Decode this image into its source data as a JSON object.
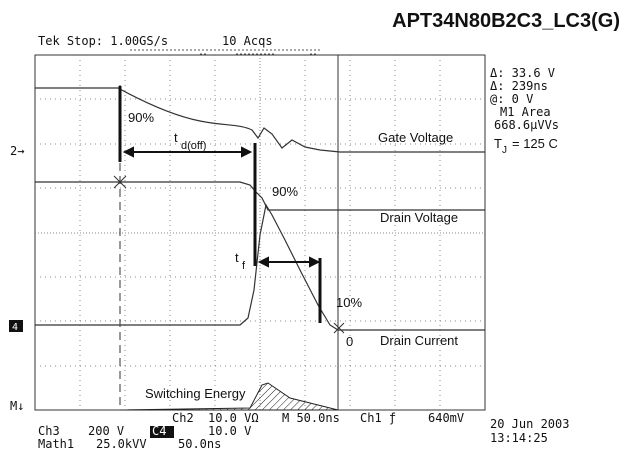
{
  "header": {
    "title": "APT34N80B2C3_LC3(G)",
    "status": "Tek Stop: 1.00GS/s",
    "acquisitions": "10 Acqs"
  },
  "readouts": [
    "Δ: 33.6 V",
    "Δ: 239ns",
    "@: 0 V",
    "M1 Area",
    "668.6µVVs"
  ],
  "junction": {
    "symbol": "T",
    "subscript": "J",
    "text": "= 125 C"
  },
  "annotations": {
    "gate_90": "90%",
    "td_off": "t",
    "td_off_sub": "d(off)",
    "gate_voltage": "Gate Voltage",
    "drain_90": "90%",
    "drain_voltage": "Drain Voltage",
    "tf": "t",
    "tf_sub": "f",
    "current_10": "10%",
    "current_0": "0",
    "drain_current": "Drain Current",
    "switching_energy": "Switching Energy"
  },
  "markers": {
    "ch2": "2→",
    "ch4": "4",
    "math": "M↓"
  },
  "footer": {
    "ch2": "Ch2",
    "ch2_scale": "10.0 VΩ",
    "timebase": "M 50.0ns",
    "trigger": "Ch1 ƒ",
    "trigger_level": "640mV",
    "ch3": "Ch3",
    "ch3_scale": "200 V",
    "ch4": "C4",
    "ch4_scale": "10.0 V",
    "math1": "Math1",
    "math1_scale": "25.0kVV",
    "math1_time": "50.0ns",
    "date": "20 Jun 2003",
    "time": "13:14:25"
  }
}
